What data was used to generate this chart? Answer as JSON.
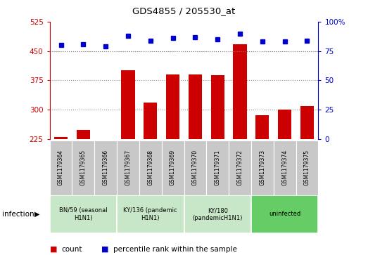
{
  "title": "GDS4855 / 205530_at",
  "samples": [
    "GSM1179364",
    "GSM1179365",
    "GSM1179366",
    "GSM1179367",
    "GSM1179368",
    "GSM1179369",
    "GSM1179370",
    "GSM1179371",
    "GSM1179372",
    "GSM1179373",
    "GSM1179374",
    "GSM1179375"
  ],
  "counts": [
    230,
    248,
    225,
    400,
    318,
    390,
    390,
    388,
    468,
    285,
    300,
    310
  ],
  "percentiles": [
    80,
    81,
    79,
    88,
    84,
    86,
    87,
    85,
    90,
    83,
    83,
    84
  ],
  "groups": [
    {
      "label": "BN/59 (seasonal\nH1N1)",
      "start": 0,
      "end": 3,
      "color": "#c8e6c8"
    },
    {
      "label": "KY/136 (pandemic\nH1N1)",
      "start": 3,
      "end": 6,
      "color": "#c8e6c8"
    },
    {
      "label": "KY/180\n(pandemicH1N1)",
      "start": 6,
      "end": 9,
      "color": "#c8e6c8"
    },
    {
      "label": "uninfected",
      "start": 9,
      "end": 12,
      "color": "#66cc66"
    }
  ],
  "ylim_left": [
    225,
    525
  ],
  "yticks_left": [
    225,
    300,
    375,
    450,
    525
  ],
  "ylim_right": [
    0,
    100
  ],
  "yticks_right": [
    0,
    25,
    50,
    75,
    100
  ],
  "bar_color": "#cc0000",
  "dot_color": "#0000cc",
  "dotted_line_color": "#888888",
  "background_plot": "#ffffff",
  "background_label": "#c8c8c8",
  "title_color": "#000000",
  "left_axis_color": "#cc0000",
  "right_axis_color": "#0000cc"
}
